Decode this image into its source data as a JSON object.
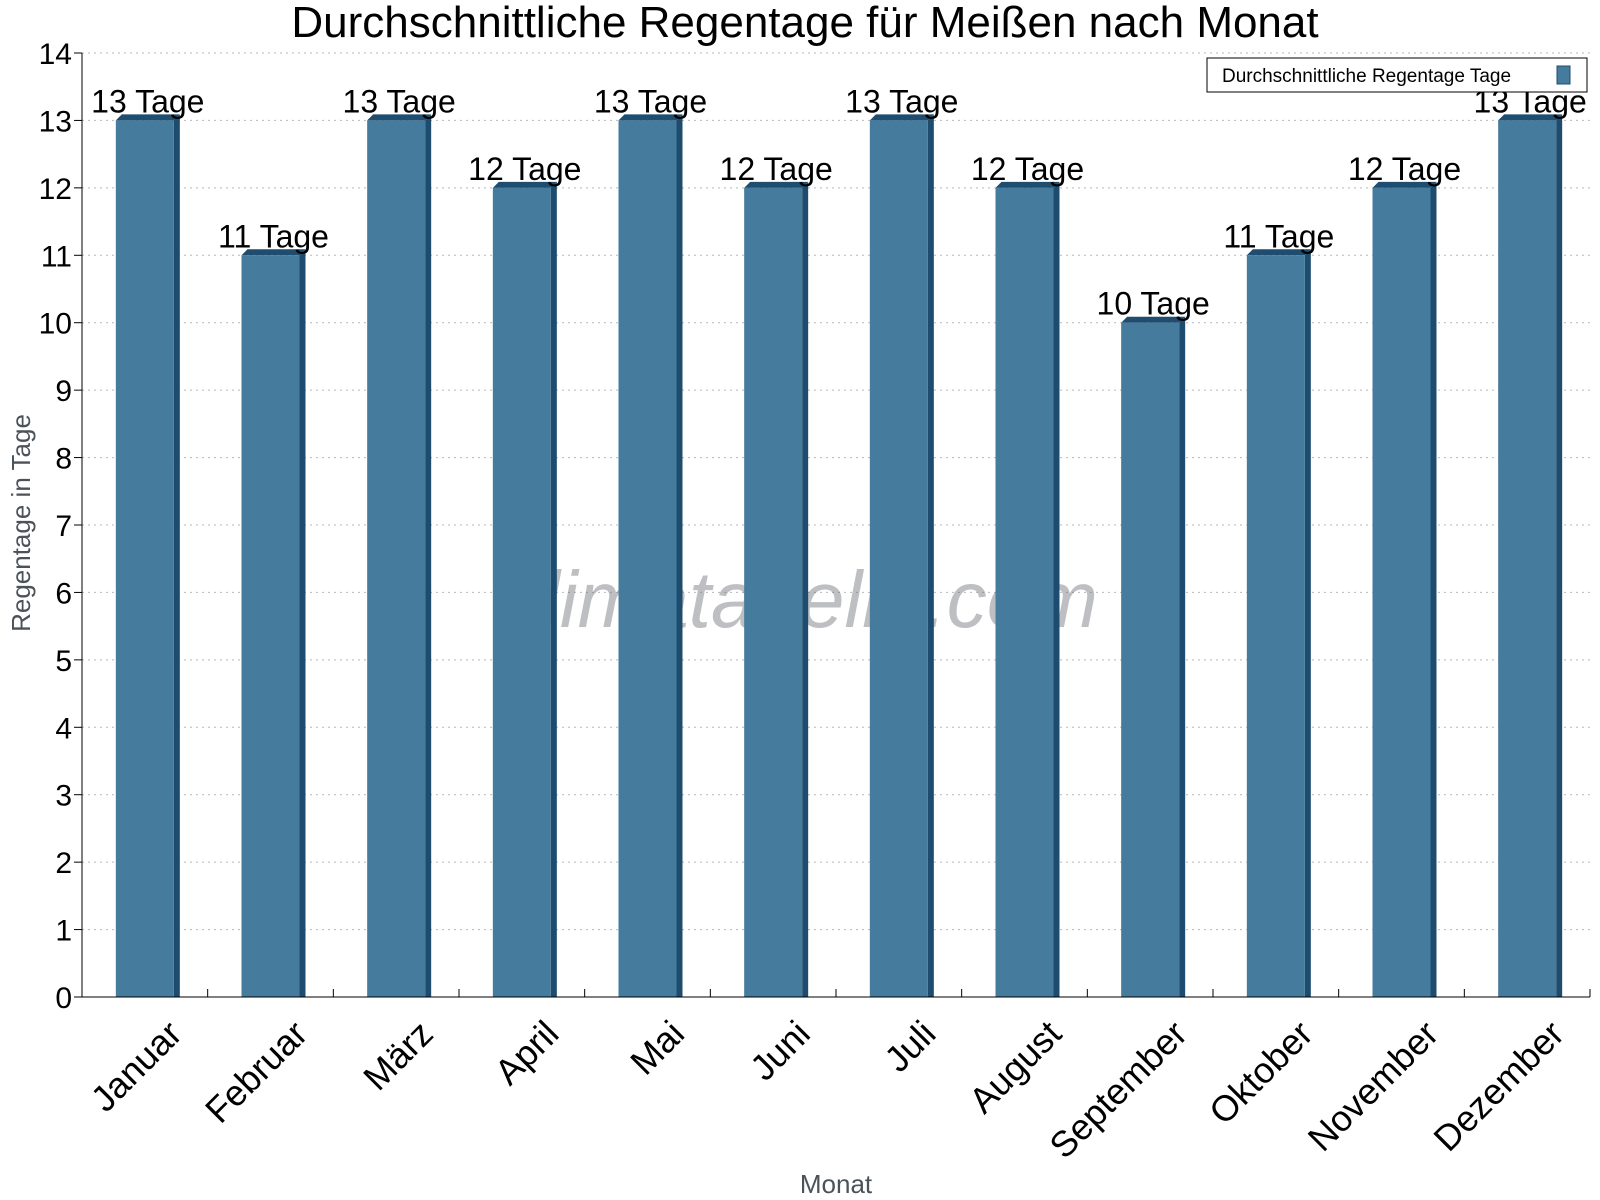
{
  "chart_data": {
    "type": "bar",
    "title": "Durchschnittliche Regentage für Meißen nach Monat",
    "xlabel": "Monat",
    "ylabel": "Regentage in Tage",
    "ylim": [
      0,
      14
    ],
    "yticks": [
      0,
      1,
      2,
      3,
      4,
      5,
      6,
      7,
      8,
      9,
      10,
      11,
      12,
      13,
      14
    ],
    "grid": true,
    "legend_position": "top-right",
    "categories": [
      "Januar",
      "Februar",
      "März",
      "April",
      "Mai",
      "Juni",
      "Juli",
      "August",
      "September",
      "Oktober",
      "November",
      "Dezember"
    ],
    "series": [
      {
        "name": "Durchschnittliche Regentage Tage",
        "values": [
          13,
          11,
          13,
          12,
          13,
          12,
          13,
          12,
          10,
          11,
          12,
          13
        ],
        "labels": [
          "13 Tage",
          "11 Tage",
          "13 Tage",
          "12 Tage",
          "13 Tage",
          "12 Tage",
          "13 Tage",
          "12 Tage",
          "10 Tage",
          "11 Tage",
          "12 Tage",
          "13 Tage"
        ],
        "color": "#457b9d",
        "side_color": "#1d4c6e",
        "top_color": "#1f4d6f"
      }
    ]
  },
  "watermark": "klimatabelle.com"
}
